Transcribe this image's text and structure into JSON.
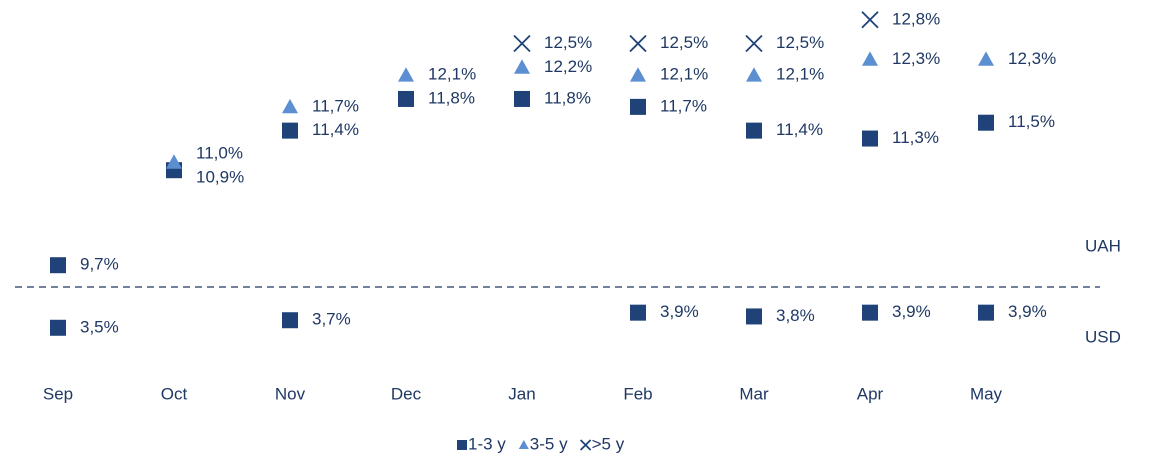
{
  "chart_data": {
    "type": "scatter",
    "categories": [
      "Sep",
      "Oct",
      "Nov",
      "Dec",
      "Jan",
      "Feb",
      "Mar",
      "Apr",
      "May"
    ],
    "legend": [
      {
        "name": "1-3 y",
        "color": "#1f4278",
        "marker": "square"
      },
      {
        "name": "3-5 y",
        "color": "#5b8fd1",
        "marker": "triangle"
      },
      {
        "name": ">5 y",
        "color": "#1f4278",
        "marker": "cross"
      }
    ],
    "panels": [
      {
        "label": "UAH",
        "ylim": [
          9.45,
          13.05
        ],
        "series": [
          {
            "values": [
              9.7,
              10.9,
              11.4,
              11.8,
              11.8,
              11.7,
              11.4,
              11.3,
              11.5
            ],
            "value_labels": [
              "9,7%",
              "10,9%",
              "11,4%",
              "11,8%",
              "11,8%",
              "11,7%",
              "11,4%",
              "11,3%",
              "11,5%"
            ]
          },
          {
            "values": [
              null,
              11.0,
              11.7,
              12.1,
              12.2,
              12.1,
              12.1,
              12.3,
              12.3
            ],
            "value_labels": [
              null,
              "11,0%",
              "11,7%",
              "12,1%",
              "12,2%",
              "12,1%",
              "12,1%",
              "12,3%",
              "12,3%"
            ]
          },
          {
            "values": [
              null,
              null,
              null,
              null,
              12.5,
              12.5,
              12.5,
              12.8,
              null
            ],
            "value_labels": [
              null,
              null,
              null,
              null,
              "12,5%",
              "12,5%",
              "12,5%",
              "12,8%",
              null
            ]
          }
        ]
      },
      {
        "label": "USD",
        "ylim": [
          2.7,
          4.5
        ],
        "series": [
          {
            "values": [
              3.5,
              null,
              3.7,
              null,
              null,
              3.9,
              3.8,
              3.9,
              3.9
            ],
            "value_labels": [
              "3,5%",
              null,
              "3,7%",
              null,
              null,
              "3,9%",
              "3,8%",
              "3,9%",
              "3,9%"
            ]
          }
        ]
      }
    ]
  }
}
